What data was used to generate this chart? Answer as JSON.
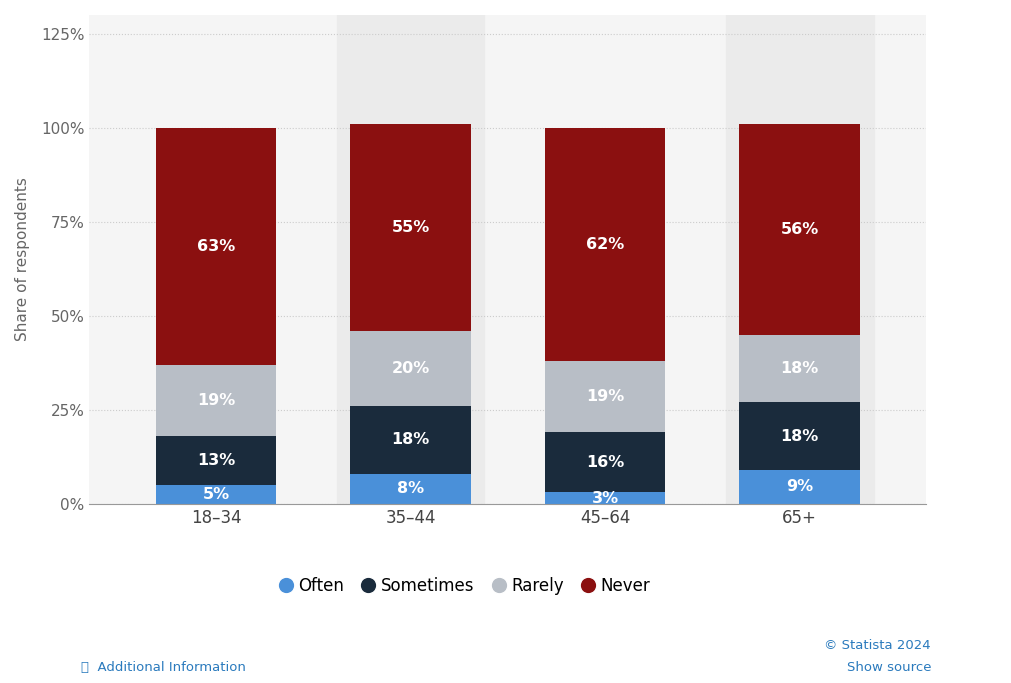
{
  "categories": [
    "18–34",
    "35–44",
    "45–64",
    "65+"
  ],
  "series": {
    "Often": [
      5,
      8,
      3,
      9
    ],
    "Sometimes": [
      13,
      18,
      16,
      18
    ],
    "Rarely": [
      19,
      20,
      19,
      18
    ],
    "Never": [
      63,
      55,
      62,
      56
    ]
  },
  "colors": {
    "Often": "#4a90d9",
    "Sometimes": "#1a2b3c",
    "Rarely": "#b8bec6",
    "Never": "#8b1010"
  },
  "ylabel": "Share of respondents",
  "ylim": [
    0,
    130
  ],
  "yticks": [
    0,
    25,
    50,
    75,
    100,
    125
  ],
  "ytick_labels": [
    "0%",
    "25%",
    "50%",
    "75%",
    "100%",
    "125%"
  ],
  "bar_width": 0.62,
  "label_fontsize": 11.5,
  "legend_fontsize": 12,
  "ylabel_fontsize": 11,
  "tick_fontsize": 11,
  "background_color": "#ffffff",
  "plot_bg_color": "#f5f5f5",
  "grid_color": "#cccccc",
  "highlight_cols": [
    1,
    3
  ],
  "highlight_bg": "#ebebeb",
  "copyright_text": "© Statista 2024",
  "source_text": "Show source",
  "additional_text": "Additional Information"
}
